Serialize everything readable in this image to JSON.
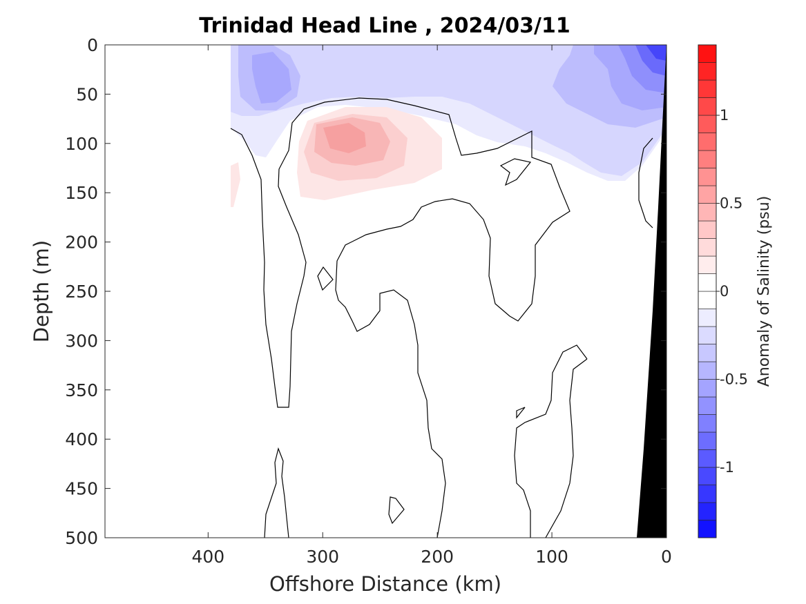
{
  "chart_data": {
    "type": "heatmap",
    "title": "Trinidad Head Line , 2024/03/11",
    "xlabel": "Offshore Distance (km)",
    "ylabel": "Depth (m)",
    "xlim": [
      490,
      0
    ],
    "ylim": [
      500,
      0
    ],
    "x_reversed": true,
    "y_reversed": true,
    "xticks": [
      400,
      300,
      200,
      100,
      0
    ],
    "xtick_labels": [
      "400",
      "300",
      "200",
      "100",
      "0"
    ],
    "yticks": [
      0,
      50,
      100,
      150,
      200,
      250,
      300,
      350,
      400,
      450,
      500
    ],
    "ytick_labels": [
      "0",
      "50",
      "100",
      "150",
      "200",
      "250",
      "300",
      "350",
      "400",
      "450",
      "500"
    ],
    "grid": false,
    "colorbar": {
      "label": "Anomaly of Salinity (psu)",
      "range": [
        -1.4,
        1.4
      ],
      "step": 0.1,
      "ticks": [
        -1,
        -0.5,
        0,
        0.5,
        1
      ],
      "tick_labels": [
        "-1",
        "-0.5",
        "0",
        "0.5",
        "1"
      ],
      "colors": {
        "negative_max": "#0000ff",
        "zero": "#ffffff",
        "positive_max": "#ff0000"
      }
    },
    "data_extent_km": [
      0,
      380
    ],
    "features": {
      "surface_fresh_anomaly": {
        "x_range": [
          0,
          380
        ],
        "depth_range": [
          0,
          140
        ],
        "min_value": -1.0,
        "min_location": {
          "x": 15,
          "depth": 5
        }
      },
      "subsurface_salty_anomaly": {
        "x_range": [
          180,
          330
        ],
        "depth_range": [
          60,
          165
        ],
        "max_value": 0.4,
        "max_location": {
          "x": 285,
          "depth": 95
        }
      },
      "bathymetry_color": "#000000"
    },
    "contour_levels": [
      0
    ]
  }
}
